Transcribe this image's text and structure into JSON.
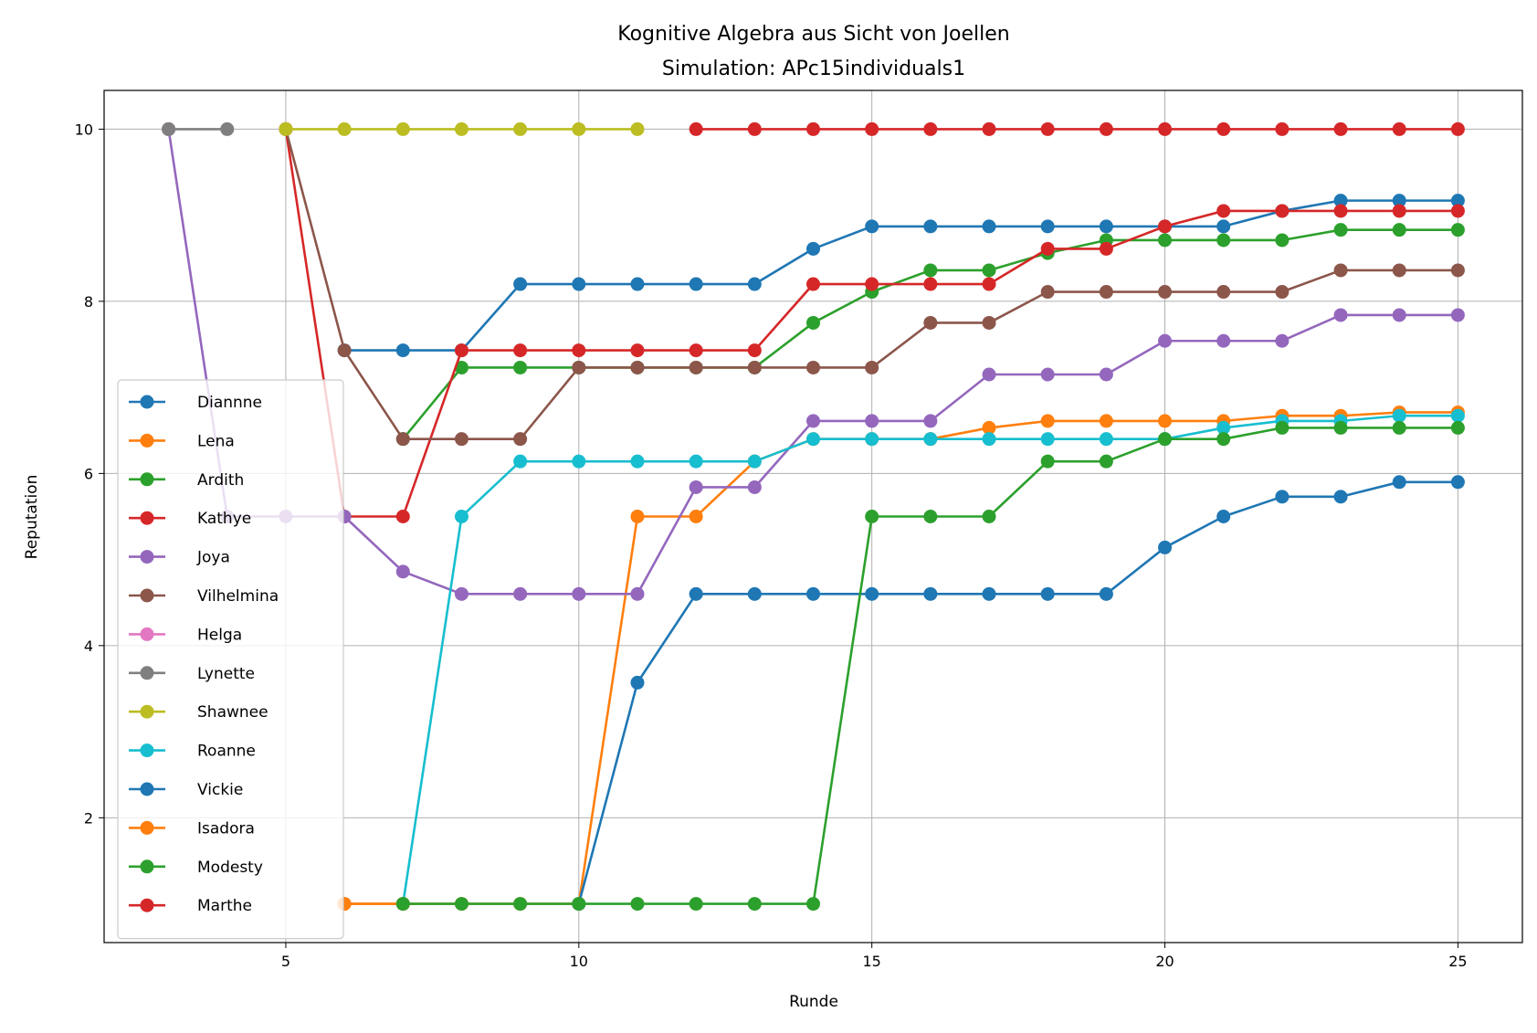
{
  "chart_data": {
    "type": "line",
    "title": "Kognitive Algebra aus Sicht von Joellen",
    "subtitle": "Simulation: APc15individuals1",
    "xlabel": "Runde",
    "ylabel": "Reputation",
    "xlim": [
      1.9,
      26.1
    ],
    "ylim": [
      0.55,
      10.45
    ],
    "xticks": [
      5,
      10,
      15,
      20,
      25
    ],
    "yticks": [
      2,
      4,
      6,
      8,
      10
    ],
    "grid": true,
    "legend_position": "lower-left",
    "series": [
      {
        "name": "Diannne",
        "color": "#1f77b4",
        "x": [
          6,
          7,
          8,
          9,
          10,
          11,
          12,
          13,
          14,
          15,
          16,
          17,
          18,
          19,
          20,
          21,
          22,
          23,
          24,
          25
        ],
        "y": [
          7.43,
          7.43,
          7.43,
          8.2,
          8.2,
          8.2,
          8.2,
          8.2,
          8.61,
          8.87,
          8.87,
          8.87,
          8.87,
          8.87,
          8.87,
          8.87,
          9.05,
          9.17,
          9.17,
          9.17
        ]
      },
      {
        "name": "Lena",
        "color": "#ff7f0e",
        "x": [
          6,
          7,
          8,
          9,
          10,
          11,
          12,
          13,
          14,
          15,
          16,
          17,
          18,
          19,
          20,
          21,
          22,
          23,
          24,
          25
        ],
        "y": [
          1.0,
          1.0,
          1.0,
          1.0,
          1.0,
          5.5,
          5.5,
          6.14,
          6.4,
          6.4,
          6.4,
          6.53,
          6.61,
          6.61,
          6.61,
          6.61,
          6.67,
          6.67,
          6.71,
          6.71
        ]
      },
      {
        "name": "Ardith",
        "color": "#2ca02c",
        "x": [
          7,
          8,
          9,
          10,
          11,
          12,
          13,
          14,
          15,
          16,
          17,
          18,
          19,
          20,
          21,
          22,
          23,
          24,
          25
        ],
        "y": [
          6.4,
          7.23,
          7.23,
          7.23,
          7.23,
          7.23,
          7.23,
          7.75,
          8.11,
          8.36,
          8.36,
          8.56,
          8.71,
          8.71,
          8.71,
          8.71,
          8.83,
          8.83,
          8.83
        ]
      },
      {
        "name": "Kathye",
        "color": "#d62728",
        "x": [
          5,
          6,
          7,
          8,
          9,
          10,
          11,
          12,
          13,
          14,
          15,
          16,
          17,
          18,
          19,
          20,
          21,
          22,
          23,
          24,
          25
        ],
        "y": [
          10.0,
          5.5,
          5.5,
          7.43,
          7.43,
          7.43,
          7.43,
          7.43,
          7.43,
          8.2,
          8.2,
          8.2,
          8.2,
          8.61,
          8.61,
          8.87,
          9.05,
          9.05,
          9.05,
          9.05,
          9.05
        ]
      },
      {
        "name": "Joya",
        "color": "#9467bd",
        "x": [
          3,
          4,
          5,
          6,
          7,
          8,
          9,
          10,
          11,
          12,
          13,
          14,
          15,
          16,
          17,
          18,
          19,
          20,
          21,
          22,
          23,
          24,
          25
        ],
        "y": [
          10.0,
          5.5,
          5.5,
          5.5,
          4.86,
          4.6,
          4.6,
          4.6,
          4.6,
          5.84,
          5.84,
          6.61,
          6.61,
          6.61,
          7.15,
          7.15,
          7.15,
          7.54,
          7.54,
          7.54,
          7.84,
          7.84,
          7.84
        ]
      },
      {
        "name": "Vilhelmina",
        "color": "#8c564b",
        "x": [
          5,
          6,
          7,
          8,
          9,
          10,
          11,
          12,
          13,
          14,
          15,
          16,
          17,
          18,
          19,
          20,
          21,
          22,
          23,
          24,
          25
        ],
        "y": [
          10.0,
          7.43,
          6.4,
          6.4,
          6.4,
          7.23,
          7.23,
          7.23,
          7.23,
          7.23,
          7.23,
          7.75,
          7.75,
          8.11,
          8.11,
          8.11,
          8.11,
          8.11,
          8.36,
          8.36,
          8.36
        ]
      },
      {
        "name": "Helga",
        "color": "#e377c2",
        "x": [
          3
        ],
        "y": [
          10.0
        ]
      },
      {
        "name": "Lynette",
        "color": "#7f7f7f",
        "x": [
          3,
          4
        ],
        "y": [
          10.0,
          10.0
        ]
      },
      {
        "name": "Shawnee",
        "color": "#bcbd22",
        "x": [
          5,
          6,
          7,
          8,
          9,
          10,
          11
        ],
        "y": [
          10.0,
          10.0,
          10.0,
          10.0,
          10.0,
          10.0,
          10.0
        ]
      },
      {
        "name": "Roanne",
        "color": "#17becf",
        "x": [
          7,
          8,
          9,
          10,
          11,
          12,
          13,
          14,
          15,
          16,
          17,
          18,
          19,
          20,
          21,
          22,
          23,
          24,
          25
        ],
        "y": [
          1.0,
          5.5,
          6.14,
          6.14,
          6.14,
          6.14,
          6.14,
          6.4,
          6.4,
          6.4,
          6.4,
          6.4,
          6.4,
          6.4,
          6.53,
          6.61,
          6.61,
          6.67,
          6.67
        ]
      },
      {
        "name": "Vickie",
        "color": "#1f77b4",
        "x": [
          10,
          11,
          12,
          13,
          14,
          15,
          16,
          17,
          18,
          19,
          20,
          21,
          22,
          23,
          24,
          25
        ],
        "y": [
          1.0,
          3.57,
          4.6,
          4.6,
          4.6,
          4.6,
          4.6,
          4.6,
          4.6,
          4.6,
          5.14,
          5.5,
          5.73,
          5.73,
          5.9,
          5.9
        ]
      },
      {
        "name": "Isadora",
        "color": "#ff7f0e",
        "x": [
          6,
          7
        ],
        "y": [
          1.0,
          1.0
        ]
      },
      {
        "name": "Modesty",
        "color": "#2ca02c",
        "x": [
          7,
          8,
          9,
          10,
          11,
          12,
          13,
          14,
          15,
          16,
          17,
          18,
          19,
          20,
          21,
          22,
          23,
          24,
          25
        ],
        "y": [
          1.0,
          1.0,
          1.0,
          1.0,
          1.0,
          1.0,
          1.0,
          1.0,
          5.5,
          5.5,
          5.5,
          6.14,
          6.14,
          6.4,
          6.4,
          6.53,
          6.53,
          6.53,
          6.53
        ]
      },
      {
        "name": "Marthe",
        "color": "#d62728",
        "x": [
          12,
          13,
          14,
          15,
          16,
          17,
          18,
          19,
          20,
          21,
          22,
          23,
          24,
          25
        ],
        "y": [
          10.0,
          10.0,
          10.0,
          10.0,
          10.0,
          10.0,
          10.0,
          10.0,
          10.0,
          10.0,
          10.0,
          10.0,
          10.0,
          10.0
        ]
      }
    ]
  }
}
